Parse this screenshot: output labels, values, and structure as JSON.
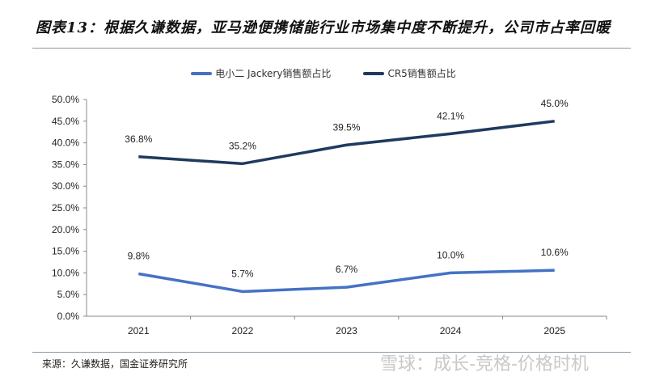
{
  "title": "图表13：根据久谦数据，亚马逊便携储能行业市场集中度不断提升，公司市占率回暖",
  "source": "来源：久谦数据，国金证券研究所",
  "watermark": "雪球：成长-竞格-价格时机",
  "chart_data": {
    "type": "line",
    "categories": [
      "2021",
      "2022",
      "2023",
      "2024",
      "2025"
    ],
    "ylim": [
      0,
      50
    ],
    "yticks": [
      "0.0%",
      "5.0%",
      "10.0%",
      "15.0%",
      "20.0%",
      "25.0%",
      "30.0%",
      "35.0%",
      "40.0%",
      "45.0%",
      "50.0%"
    ],
    "grid": false,
    "legend_position": "top",
    "series": [
      {
        "name": "电小二 Jackery销售额占比",
        "values": [
          9.8,
          5.7,
          6.7,
          10.0,
          10.6
        ],
        "labels": [
          "9.8%",
          "5.7%",
          "6.7%",
          "10.0%",
          "10.6%"
        ],
        "color": "#4472C4"
      },
      {
        "name": "CR5销售额占比",
        "values": [
          36.8,
          35.2,
          39.5,
          42.1,
          45.0
        ],
        "labels": [
          "36.8%",
          "35.2%",
          "39.5%",
          "42.1%",
          "45.0%"
        ],
        "color": "#1F3A5F"
      }
    ]
  }
}
